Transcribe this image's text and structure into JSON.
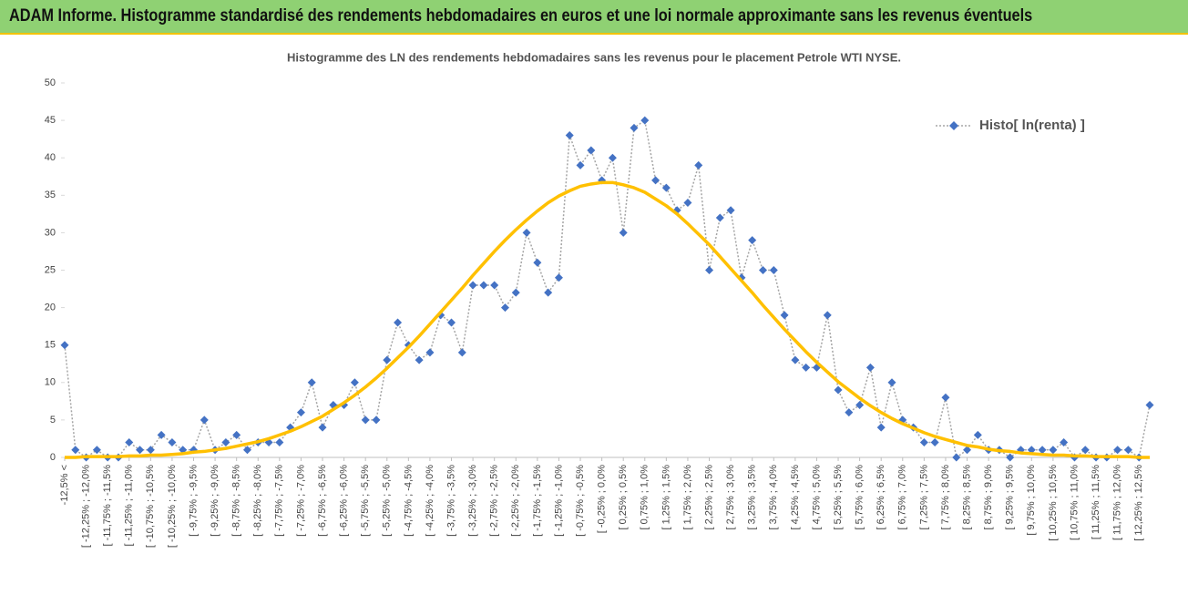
{
  "header": {
    "title": "ADAM Informe. Histogramme standardisé des rendements hebdomadaires en euros et une loi normale approximante sans les revenus éventuels"
  },
  "chart_data": {
    "type": "line",
    "title": "Histogramme des LN des rendements hebdomadaires sans les revenus pour le placement Petrole WTI NYSE.",
    "categories": [
      "-12,5% <",
      null,
      "[ -12,25% ; -12,0%",
      null,
      "[ -11,75% ; -11,5%",
      null,
      "[ -11,25% ; -11,0%",
      null,
      "[ -10,75% ; -10,5%",
      null,
      "[ -10,25% ; -10,0%",
      null,
      "[ -9,75% ; -9,5%",
      null,
      "[ -9,25% ; -9,0%",
      null,
      "[ -8,75% ; -8,5%",
      null,
      "[ -8,25% ; -8,0%",
      null,
      "[ -7,75% ; -7,5%",
      null,
      "[ -7,25% ; -7,0%",
      null,
      "[ -6,75% ; -6,5%",
      null,
      "[ -6,25% ; -6,0%",
      null,
      "[ -5,75% ; -5,5%",
      null,
      "[ -5,25% ; -5,0%",
      null,
      "[ -4,75% ; -4,5%",
      null,
      "[ -4,25% ; -4,0%",
      null,
      "[ -3,75% ; -3,5%",
      null,
      "[ -3,25% ; -3,0%",
      null,
      "[ -2,75% ; -2,5%",
      null,
      "[ -2,25% ; -2,0%",
      null,
      "[ -1,75% ; -1,5%",
      null,
      "[ -1,25% ; -1,0%",
      null,
      "[ -0,75% ; -0,5%",
      null,
      "[ -0,25% ; 0,0%",
      null,
      "[ 0,25% ; 0,5%",
      null,
      "[ 0,75% ; 1,0%",
      null,
      "[ 1,25% ; 1,5%",
      null,
      "[ 1,75% ; 2,0%",
      null,
      "[ 2,25% ; 2,5%",
      null,
      "[ 2,75% ; 3,0%",
      null,
      "[ 3,25% ; 3,5%",
      null,
      "[ 3,75% ; 4,0%",
      null,
      "[ 4,25% ; 4,5%",
      null,
      "[ 4,75% ; 5,0%",
      null,
      "[ 5,25% ; 5,5%",
      null,
      "[ 5,75% ; 6,0%",
      null,
      "[ 6,25% ; 6,5%",
      null,
      "[ 6,75% ; 7,0%",
      null,
      "[ 7,25% ; 7,5%",
      null,
      "[ 7,75% ; 8,0%",
      null,
      "[ 8,25% ; 8,5%",
      null,
      "[ 8,75% ; 9,0%",
      null,
      "[ 9,25% ; 9,5%",
      null,
      "[ 9,75% ; 10,0%",
      null,
      "[ 10,25% ; 10,5%",
      null,
      "[ 10,75% ; 11,0%",
      null,
      "[ 11,25% ; 11,5%",
      null,
      "[ 11,75% ; 12,0%",
      null,
      "[ 12,25% ; 12,5%",
      null
    ],
    "series": [
      {
        "name": "Histo[ ln(renta) ]",
        "color": "#4472c4",
        "line_color": "#a5a5a5",
        "values": [
          15,
          1,
          0,
          1,
          0,
          0,
          2,
          1,
          1,
          3,
          2,
          1,
          1,
          5,
          1,
          2,
          3,
          1,
          2,
          2,
          2,
          4,
          6,
          10,
          4,
          7,
          7,
          10,
          5,
          5,
          13,
          18,
          15,
          13,
          14,
          19,
          18,
          14,
          23,
          23,
          23,
          20,
          22,
          30,
          26,
          22,
          24,
          43,
          39,
          41,
          37,
          40,
          30,
          44,
          45,
          37,
          36,
          33,
          34,
          39,
          25,
          32,
          33,
          24,
          29,
          25,
          25,
          19,
          13,
          12,
          12,
          19,
          9,
          6,
          7,
          12,
          4,
          10,
          5,
          4,
          2,
          2,
          8,
          0,
          1,
          3,
          1,
          1,
          0,
          1,
          1,
          1,
          1,
          2,
          0,
          1,
          0,
          0,
          1,
          1,
          0,
          7
        ]
      },
      {
        "color": "#ffc000",
        "values": [
          0.0,
          0.0,
          0.1,
          0.1,
          0.1,
          0.1,
          0.2,
          0.2,
          0.3,
          0.3,
          0.4,
          0.5,
          0.7,
          0.8,
          1.0,
          1.2,
          1.5,
          1.8,
          2.1,
          2.5,
          3.0,
          3.5,
          4.1,
          4.8,
          5.5,
          6.4,
          7.3,
          8.3,
          9.4,
          10.6,
          11.9,
          13.3,
          14.7,
          16.2,
          17.8,
          19.4,
          21.0,
          22.6,
          24.3,
          25.9,
          27.5,
          29.0,
          30.4,
          31.7,
          32.9,
          34.0,
          34.9,
          35.6,
          36.2,
          36.5,
          36.7,
          36.7,
          36.4,
          36.0,
          35.4,
          34.5,
          33.6,
          32.5,
          31.2,
          29.8,
          28.4,
          26.8,
          25.2,
          23.6,
          22.0,
          20.3,
          18.7,
          17.1,
          15.6,
          14.1,
          12.7,
          11.4,
          10.1,
          9.0,
          7.9,
          6.9,
          6.0,
          5.2,
          4.5,
          3.9,
          3.3,
          2.8,
          2.4,
          2.0,
          1.6,
          1.4,
          1.1,
          0.9,
          0.8,
          0.6,
          0.5,
          0.4,
          0.3,
          0.3,
          0.2,
          0.2,
          0.1,
          0.1,
          0.1,
          0.1,
          0.0,
          0.0
        ]
      }
    ],
    "ylim": [
      0,
      50
    ],
    "yticks": [
      0,
      5,
      10,
      15,
      20,
      25,
      30,
      35,
      40,
      45,
      50
    ],
    "grid": false,
    "legend": "upper right"
  }
}
